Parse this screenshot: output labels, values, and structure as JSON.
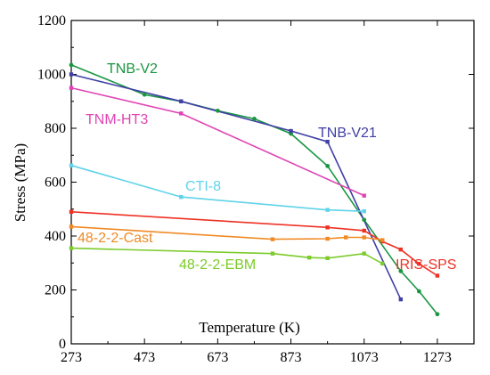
{
  "chart_data": {
    "type": "line",
    "xlabel": "Temperature (K)",
    "ylabel": "Stress (MPa)",
    "xlim": [
      273,
      1373
    ],
    "ylim": [
      0,
      1200
    ],
    "xticks": [
      273,
      473,
      673,
      873,
      1073,
      1273
    ],
    "yticks": [
      0,
      200,
      400,
      600,
      800,
      1000,
      1200
    ],
    "grid": false,
    "series": [
      {
        "name": "TNB-V2",
        "color": "#1a9641",
        "marker": "circle",
        "x": [
          273,
          473,
          573,
          673,
          773,
          873,
          973,
          1073,
          1173,
          1223,
          1273
        ],
        "y": [
          1035,
          925,
          900,
          865,
          835,
          780,
          660,
          460,
          270,
          195,
          110
        ]
      },
      {
        "name": "TNB-V21",
        "color": "#3f3fa6",
        "marker": "square",
        "x": [
          273,
          573,
          873,
          973,
          1173
        ],
        "y": [
          1000,
          900,
          790,
          750,
          165
        ]
      },
      {
        "name": "TNM-HT3",
        "color": "#e044b4",
        "marker": "square",
        "x": [
          273,
          573,
          1073
        ],
        "y": [
          950,
          855,
          550
        ]
      },
      {
        "name": "CTI-8",
        "color": "#5fd3ea",
        "marker": "square",
        "x": [
          273,
          573,
          973,
          1073
        ],
        "y": [
          662,
          545,
          497,
          492
        ]
      },
      {
        "name": "IRIS-SPS",
        "color": "#ee3124",
        "marker": "square",
        "x": [
          273,
          973,
          1073,
          1123,
          1173,
          1223,
          1273
        ],
        "y": [
          490,
          432,
          420,
          380,
          350,
          297,
          253
        ]
      },
      {
        "name": "48-2-2-Cast",
        "color": "#f08a24",
        "marker": "square",
        "x": [
          273,
          823,
          973,
          1023,
          1073,
          1123
        ],
        "y": [
          435,
          388,
          390,
          395,
          395,
          385
        ]
      },
      {
        "name": "48-2-2-EBM",
        "color": "#7ccb2a",
        "marker": "square",
        "x": [
          273,
          823,
          923,
          973,
          1073,
          1123
        ],
        "y": [
          355,
          335,
          320,
          318,
          335,
          298
        ]
      }
    ]
  }
}
